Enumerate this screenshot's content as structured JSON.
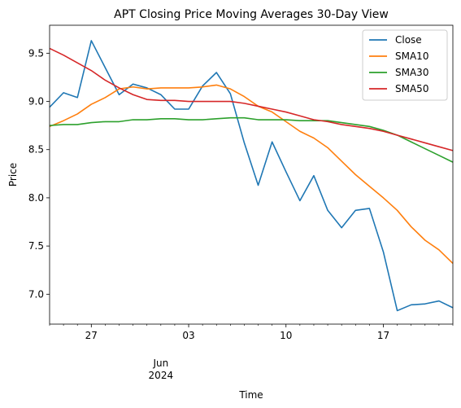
{
  "chart_data": {
    "type": "line",
    "title": "APT Closing Price Moving Averages 30-Day View",
    "xlabel": "Time",
    "ylabel": "Price",
    "ylim": [
      6.69,
      9.79
    ],
    "y_ticks": [
      7.0,
      7.5,
      8.0,
      8.5,
      9.0,
      9.5
    ],
    "y_tick_labels": [
      "7.0",
      "7.5",
      "8.0",
      "8.5",
      "9.0",
      "9.5"
    ],
    "xlim": [
      "2024-05-24",
      "2024-06-22"
    ],
    "x_major_ticks": [
      {
        "date": "2024-05-27",
        "label": "27"
      },
      {
        "date": "2024-06-03",
        "label": "03"
      },
      {
        "date": "2024-06-10",
        "label": "10"
      },
      {
        "date": "2024-06-17",
        "label": "17"
      }
    ],
    "x_secondary_label": {
      "date": "2024-06-01",
      "lines": [
        "Jun",
        "2024"
      ]
    },
    "x_minor_ticks": [
      "2024-05-24",
      "2024-05-25",
      "2024-05-26",
      "2024-05-28",
      "2024-05-29",
      "2024-05-30",
      "2024-05-31",
      "2024-06-01",
      "2024-06-02",
      "2024-06-04",
      "2024-06-05",
      "2024-06-06",
      "2024-06-07",
      "2024-06-08",
      "2024-06-09",
      "2024-06-11",
      "2024-06-12",
      "2024-06-13",
      "2024-06-14",
      "2024-06-15",
      "2024-06-16",
      "2024-06-18",
      "2024-06-19",
      "2024-06-20",
      "2024-06-21",
      "2024-06-22"
    ],
    "grid": false,
    "legend_position": "top-right",
    "x": [
      "2024-05-24",
      "2024-05-25",
      "2024-05-26",
      "2024-05-27",
      "2024-05-28",
      "2024-05-29",
      "2024-05-30",
      "2024-05-31",
      "2024-06-01",
      "2024-06-02",
      "2024-06-03",
      "2024-06-04",
      "2024-06-05",
      "2024-06-06",
      "2024-06-07",
      "2024-06-08",
      "2024-06-09",
      "2024-06-10",
      "2024-06-11",
      "2024-06-12",
      "2024-06-13",
      "2024-06-14",
      "2024-06-15",
      "2024-06-16",
      "2024-06-17",
      "2024-06-18",
      "2024-06-19",
      "2024-06-20",
      "2024-06-21",
      "2024-06-22"
    ],
    "series": [
      {
        "name": "Close",
        "color": "#1f77b4",
        "values": [
          8.94,
          9.09,
          9.04,
          9.63,
          9.35,
          9.07,
          9.18,
          9.14,
          9.07,
          8.92,
          8.92,
          9.16,
          9.3,
          9.08,
          8.57,
          8.13,
          8.58,
          8.27,
          7.97,
          8.23,
          7.87,
          7.69,
          7.87,
          7.89,
          7.44,
          6.83,
          6.89,
          6.9,
          6.93,
          6.86
        ]
      },
      {
        "name": "SMA10",
        "color": "#ff7f0e",
        "values": [
          8.74,
          8.8,
          8.87,
          8.97,
          9.04,
          9.13,
          9.15,
          9.13,
          9.14,
          9.14,
          9.14,
          9.15,
          9.17,
          9.13,
          9.05,
          8.95,
          8.89,
          8.79,
          8.69,
          8.62,
          8.52,
          8.38,
          8.24,
          8.12,
          8.0,
          7.87,
          7.7,
          7.56,
          7.46,
          7.32
        ]
      },
      {
        "name": "SMA30",
        "color": "#2ca02c",
        "values": [
          8.75,
          8.76,
          8.76,
          8.78,
          8.79,
          8.79,
          8.81,
          8.81,
          8.82,
          8.82,
          8.81,
          8.81,
          8.82,
          8.83,
          8.83,
          8.81,
          8.81,
          8.81,
          8.8,
          8.8,
          8.8,
          8.78,
          8.76,
          8.74,
          8.7,
          8.65,
          8.58,
          8.51,
          8.44,
          8.37
        ]
      },
      {
        "name": "SMA50",
        "color": "#d62728",
        "values": [
          9.55,
          9.48,
          9.4,
          9.32,
          9.22,
          9.14,
          9.07,
          9.02,
          9.01,
          9.01,
          9.0,
          9.0,
          9.0,
          9.0,
          8.98,
          8.95,
          8.92,
          8.89,
          8.85,
          8.81,
          8.79,
          8.76,
          8.74,
          8.72,
          8.69,
          8.65,
          8.61,
          8.57,
          8.53,
          8.49
        ]
      }
    ]
  }
}
